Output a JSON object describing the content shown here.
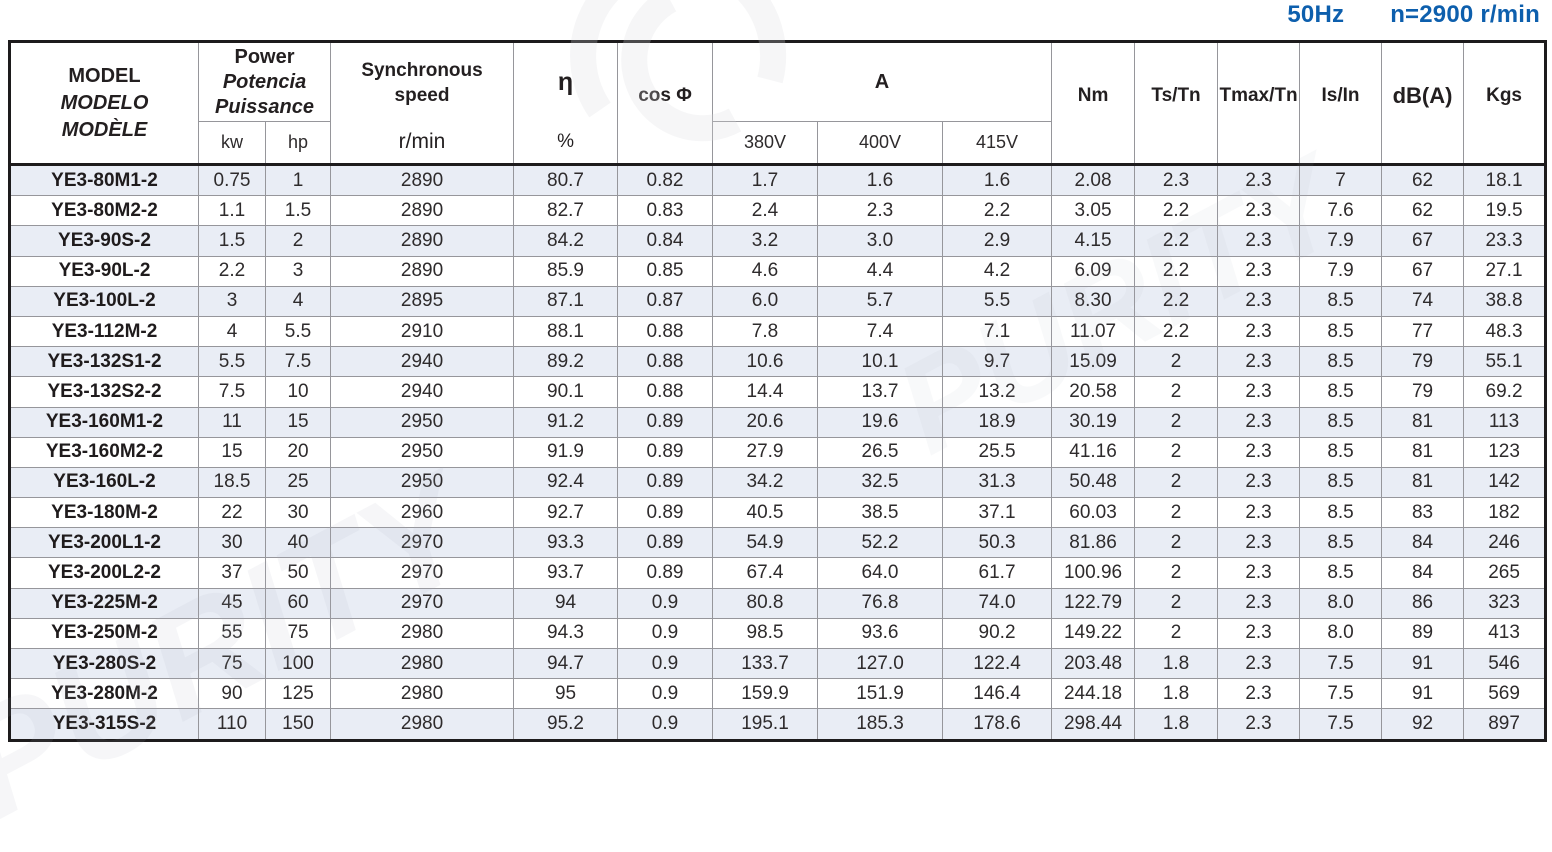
{
  "page": {
    "frequency": "50Hz",
    "speed_note": "n=2900 r/min",
    "colors": {
      "accent": "#0d5fad",
      "stripe": "#e9edf5",
      "grid": "#96969b",
      "frame": "#1d1b1c"
    },
    "watermark_text": "PURITY"
  },
  "table": {
    "headers": {
      "model": [
        "MODEL",
        "MODELO",
        "MODÈLE"
      ],
      "power": {
        "title": [
          "Power",
          "Potencia",
          "Puissance"
        ],
        "units": [
          "kw",
          "hp"
        ]
      },
      "sync_speed": {
        "title": [
          "Synchronous",
          "speed"
        ],
        "unit": "r/min"
      },
      "efficiency": {
        "symbol": "η",
        "unit": "%"
      },
      "cos_phi": "cos Φ",
      "current": {
        "title": "A",
        "voltages": [
          "380V",
          "400V",
          "415V"
        ]
      },
      "torque": "Nm",
      "ts_tn": "Ts/Tn",
      "tmax_tn": "Tmax/Tn",
      "is_in": "Is/In",
      "db": "dB(A)",
      "kgs": "Kgs"
    },
    "rows": [
      [
        "YE3-80M1-2",
        "0.75",
        "1",
        "2890",
        "80.7",
        "0.82",
        "1.7",
        "1.6",
        "1.6",
        "2.08",
        "2.3",
        "2.3",
        "7",
        "62",
        "18.1"
      ],
      [
        "YE3-80M2-2",
        "1.1",
        "1.5",
        "2890",
        "82.7",
        "0.83",
        "2.4",
        "2.3",
        "2.2",
        "3.05",
        "2.2",
        "2.3",
        "7.6",
        "62",
        "19.5"
      ],
      [
        "YE3-90S-2",
        "1.5",
        "2",
        "2890",
        "84.2",
        "0.84",
        "3.2",
        "3.0",
        "2.9",
        "4.15",
        "2.2",
        "2.3",
        "7.9",
        "67",
        "23.3"
      ],
      [
        "YE3-90L-2",
        "2.2",
        "3",
        "2890",
        "85.9",
        "0.85",
        "4.6",
        "4.4",
        "4.2",
        "6.09",
        "2.2",
        "2.3",
        "7.9",
        "67",
        "27.1"
      ],
      [
        "YE3-100L-2",
        "3",
        "4",
        "2895",
        "87.1",
        "0.87",
        "6.0",
        "5.7",
        "5.5",
        "8.30",
        "2.2",
        "2.3",
        "8.5",
        "74",
        "38.8"
      ],
      [
        "YE3-112M-2",
        "4",
        "5.5",
        "2910",
        "88.1",
        "0.88",
        "7.8",
        "7.4",
        "7.1",
        "11.07",
        "2.2",
        "2.3",
        "8.5",
        "77",
        "48.3"
      ],
      [
        "YE3-132S1-2",
        "5.5",
        "7.5",
        "2940",
        "89.2",
        "0.88",
        "10.6",
        "10.1",
        "9.7",
        "15.09",
        "2",
        "2.3",
        "8.5",
        "79",
        "55.1"
      ],
      [
        "YE3-132S2-2",
        "7.5",
        "10",
        "2940",
        "90.1",
        "0.88",
        "14.4",
        "13.7",
        "13.2",
        "20.58",
        "2",
        "2.3",
        "8.5",
        "79",
        "69.2"
      ],
      [
        "YE3-160M1-2",
        "11",
        "15",
        "2950",
        "91.2",
        "0.89",
        "20.6",
        "19.6",
        "18.9",
        "30.19",
        "2",
        "2.3",
        "8.5",
        "81",
        "113"
      ],
      [
        "YE3-160M2-2",
        "15",
        "20",
        "2950",
        "91.9",
        "0.89",
        "27.9",
        "26.5",
        "25.5",
        "41.16",
        "2",
        "2.3",
        "8.5",
        "81",
        "123"
      ],
      [
        "YE3-160L-2",
        "18.5",
        "25",
        "2950",
        "92.4",
        "0.89",
        "34.2",
        "32.5",
        "31.3",
        "50.48",
        "2",
        "2.3",
        "8.5",
        "81",
        "142"
      ],
      [
        "YE3-180M-2",
        "22",
        "30",
        "2960",
        "92.7",
        "0.89",
        "40.5",
        "38.5",
        "37.1",
        "60.03",
        "2",
        "2.3",
        "8.5",
        "83",
        "182"
      ],
      [
        "YE3-200L1-2",
        "30",
        "40",
        "2970",
        "93.3",
        "0.89",
        "54.9",
        "52.2",
        "50.3",
        "81.86",
        "2",
        "2.3",
        "8.5",
        "84",
        "246"
      ],
      [
        "YE3-200L2-2",
        "37",
        "50",
        "2970",
        "93.7",
        "0.89",
        "67.4",
        "64.0",
        "61.7",
        "100.96",
        "2",
        "2.3",
        "8.5",
        "84",
        "265"
      ],
      [
        "YE3-225M-2",
        "45",
        "60",
        "2970",
        "94",
        "0.9",
        "80.8",
        "76.8",
        "74.0",
        "122.79",
        "2",
        "2.3",
        "8.0",
        "86",
        "323"
      ],
      [
        "YE3-250M-2",
        "55",
        "75",
        "2980",
        "94.3",
        "0.9",
        "98.5",
        "93.6",
        "90.2",
        "149.22",
        "2",
        "2.3",
        "8.0",
        "89",
        "413"
      ],
      [
        "YE3-280S-2",
        "75",
        "100",
        "2980",
        "94.7",
        "0.9",
        "133.7",
        "127.0",
        "122.4",
        "203.48",
        "1.8",
        "2.3",
        "7.5",
        "91",
        "546"
      ],
      [
        "YE3-280M-2",
        "90",
        "125",
        "2980",
        "95",
        "0.9",
        "159.9",
        "151.9",
        "146.4",
        "244.18",
        "1.8",
        "2.3",
        "7.5",
        "91",
        "569"
      ],
      [
        "YE3-315S-2",
        "110",
        "150",
        "2980",
        "95.2",
        "0.9",
        "195.1",
        "185.3",
        "178.6",
        "298.44",
        "1.8",
        "2.3",
        "7.5",
        "92",
        "897"
      ]
    ]
  }
}
